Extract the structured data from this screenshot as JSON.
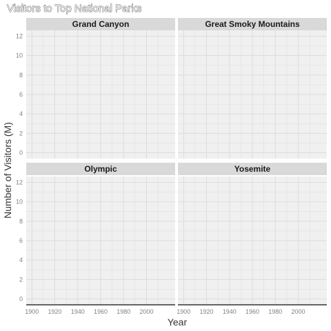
{
  "chart_data": {
    "type": "line",
    "title": "Visitors to Top National Parks",
    "xlabel": "Year",
    "ylabel": "Number of Visitors (M)",
    "xlim": [
      1895,
      2025
    ],
    "ylim": [
      -0.6,
      12.6
    ],
    "x_ticks": [
      1900,
      1920,
      1940,
      1960,
      1980,
      2000
    ],
    "y_ticks": [
      0,
      2,
      4,
      6,
      8,
      10,
      12
    ],
    "grid": true,
    "legend": "none",
    "facets": [
      {
        "name": "Grand Canyon",
        "x": [],
        "y": []
      },
      {
        "name": "Great Smoky Mountains",
        "x": [],
        "y": []
      },
      {
        "name": "Olympic",
        "x": [],
        "y": []
      },
      {
        "name": "Yosemite",
        "x": [],
        "y": []
      }
    ]
  },
  "colors": {
    "panel_bg": "#f0f0f0",
    "strip_bg": "#d9d9d9",
    "grid": "#dcdcdc",
    "axis_line": "#333333"
  }
}
